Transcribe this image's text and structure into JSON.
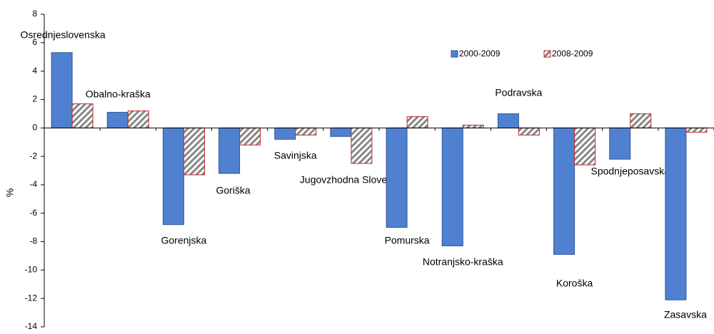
{
  "chart_data": {
    "type": "bar",
    "y_label": "%",
    "categories": [
      "Osrednjeslovenska",
      "Obalno-kraška",
      "Gorenjska",
      "Goriška",
      "Savinjska",
      "Jugovzhodna Slovenija",
      "Pomurska",
      "Notranjsko-kraška",
      "Podravska",
      "Koroška",
      "Spodnjeposavska",
      "Zasavska"
    ],
    "series": [
      {
        "name": "2000-2009",
        "color": "#4f81d0",
        "values": [
          5.3,
          1.1,
          -6.8,
          -3.2,
          -0.8,
          -0.6,
          -7.0,
          -8.3,
          1.0,
          -8.9,
          -2.2,
          -12.1
        ]
      },
      {
        "name": "2008-2009",
        "color": "#c0282d",
        "values": [
          1.7,
          1.2,
          -3.3,
          -1.2,
          -0.5,
          -2.5,
          0.8,
          0.2,
          -0.5,
          -2.6,
          1.0,
          -0.3
        ]
      }
    ],
    "ylim": [
      -14,
      8
    ],
    "yticks": [
      -14,
      -12,
      -10,
      -8,
      -6,
      -4,
      -2,
      0,
      2,
      4,
      6,
      8
    ],
    "legend": "top-right"
  }
}
